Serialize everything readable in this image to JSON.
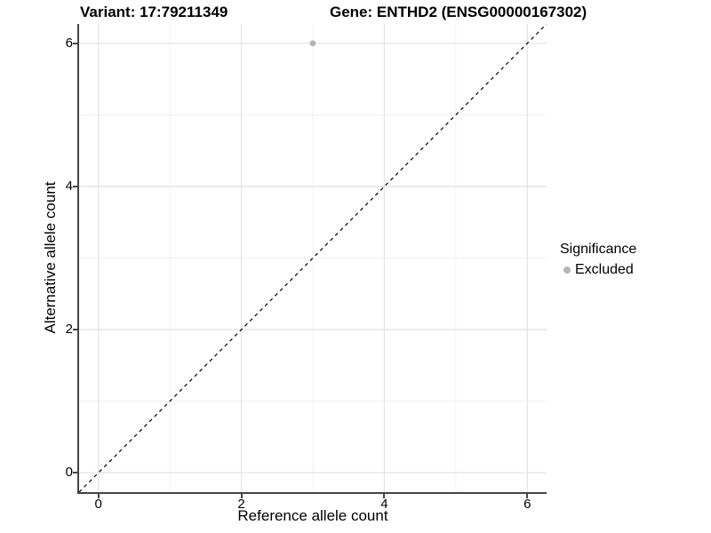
{
  "chart_data": {
    "type": "scatter",
    "titles": {
      "left": "Variant: 17:79211349",
      "right": "Gene: ENTHD2 (ENSG00000167302)"
    },
    "xlabel": "Reference allele count",
    "ylabel": "Alternative allele count",
    "xlim": [
      -0.27,
      6.27
    ],
    "ylim": [
      -0.27,
      6.27
    ],
    "x_major_ticks": [
      0,
      2,
      4,
      6
    ],
    "x_minor_ticks": [
      1,
      3,
      5
    ],
    "y_major_ticks": [
      0,
      2,
      4,
      6
    ],
    "y_minor_ticks": [
      1,
      3,
      5
    ],
    "grid": "major+minor",
    "identity_line": {
      "type": "y=x",
      "style": "dashed",
      "color": "#000000"
    },
    "series": [
      {
        "name": "Excluded",
        "marker": "circle",
        "color": "#b4b4b4",
        "points": [
          {
            "x": 3,
            "y": 6
          }
        ]
      }
    ],
    "legend": {
      "title": "Significance",
      "position": "right",
      "items": [
        {
          "label": "Excluded",
          "color": "#b4b4b4",
          "marker": "circle"
        }
      ]
    }
  },
  "colors": {
    "background": "#ffffff",
    "grid_major": "#e4e4e4",
    "grid_minor": "#f0f0f0",
    "axis_line": "#454545",
    "text": "#000000",
    "point": "#b4b4b4"
  }
}
